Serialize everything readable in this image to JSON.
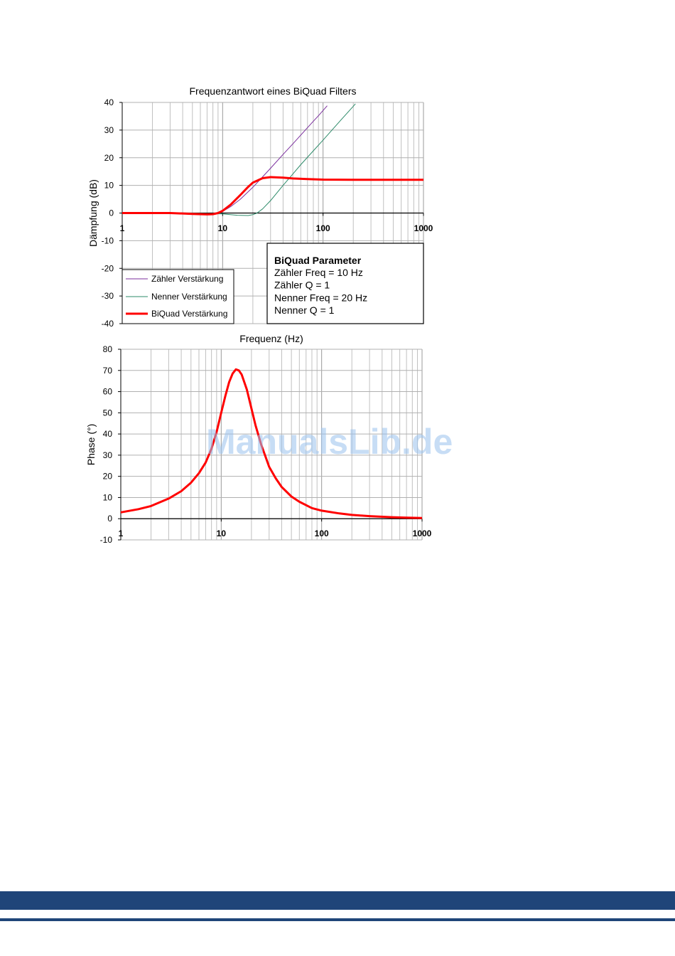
{
  "watermark": "ManualsLib.de",
  "chart_data": [
    {
      "type": "line",
      "title": "Frequenzantwort eines BiQuad Filters",
      "xlabel": "",
      "ylabel": "Dämpfung (dB)",
      "xscale": "log",
      "xlim": [
        1,
        1000
      ],
      "ylim": [
        -40,
        40
      ],
      "yticks": [
        40,
        30,
        20,
        10,
        0,
        -10,
        -20,
        -30,
        -40
      ],
      "xticks": [
        1,
        10,
        100,
        1000
      ],
      "xtick_labels": [
        "1",
        "10",
        "100",
        "1000"
      ],
      "grid": true,
      "legend_position": "bottom-left",
      "series": [
        {
          "name": "Zähler Verstärkung",
          "color": "#7b2f9e",
          "x": [
            1,
            2,
            3,
            5,
            7,
            8,
            9,
            10,
            12,
            15,
            20,
            25,
            30,
            40,
            50,
            60,
            70,
            80,
            90,
            100,
            110
          ],
          "y": [
            0,
            0,
            -0.1,
            -0.4,
            -0.6,
            -0.5,
            0.0,
            0.6,
            2.3,
            5.0,
            9.3,
            13.1,
            16.2,
            21.2,
            25.0,
            28.2,
            30.9,
            33.2,
            35.2,
            37.1,
            38.8
          ]
        },
        {
          "name": "Nenner Verstärkung",
          "color": "#2e8b6a",
          "x": [
            1,
            2,
            5,
            10,
            14,
            18,
            20,
            22,
            25,
            30,
            40,
            50,
            60,
            80,
            100,
            150,
            200,
            210
          ],
          "y": [
            0,
            0,
            0,
            -0.3,
            -0.8,
            -0.9,
            -0.6,
            0.0,
            1.5,
            4.5,
            10.0,
            14.1,
            17.5,
            22.5,
            26.4,
            33.6,
            38.6,
            39.5
          ]
        },
        {
          "name": "BiQuad Verstärkung",
          "color": "#ff0000",
          "x": [
            1,
            2,
            3,
            5,
            7,
            8,
            9,
            10,
            12,
            15,
            18,
            20,
            25,
            30,
            40,
            50,
            70,
            100,
            200,
            500,
            1000
          ],
          "y": [
            0,
            0,
            0,
            -0.3,
            -0.5,
            -0.4,
            0.0,
            0.8,
            3.0,
            6.5,
            9.5,
            11.0,
            12.6,
            13.0,
            12.8,
            12.5,
            12.3,
            12.1,
            12.0,
            12.0,
            12.0
          ]
        }
      ],
      "parameter_box": {
        "title": "BiQuad Parameter",
        "lines": [
          "Zähler Freq = 10 Hz",
          "Zähler Q = 1",
          "Nenner Freq = 20 Hz",
          "Nenner Q = 1"
        ]
      }
    },
    {
      "type": "line",
      "title": "Frequenz (Hz)",
      "xlabel": "",
      "ylabel": "Phase (°)",
      "xscale": "log",
      "xlim": [
        1,
        1000
      ],
      "ylim": [
        -10,
        80
      ],
      "yticks": [
        80,
        70,
        60,
        50,
        40,
        30,
        20,
        10,
        0,
        -10
      ],
      "xticks": [
        1,
        10,
        100,
        1000
      ],
      "xtick_labels": [
        "1",
        "10",
        "100",
        "1000"
      ],
      "grid": true,
      "series": [
        {
          "name": "",
          "color": "#ff0000",
          "x": [
            1,
            1.5,
            2,
            3,
            4,
            5,
            6,
            7,
            8,
            9,
            10,
            11,
            12,
            13,
            14,
            15,
            16,
            18,
            20,
            22,
            25,
            30,
            35,
            40,
            50,
            60,
            80,
            100,
            150,
            200,
            300,
            500,
            700,
            1000
          ],
          "y": [
            3,
            4.5,
            6,
            9.5,
            13,
            17,
            21.5,
            26.5,
            33,
            41,
            50,
            58,
            64.5,
            68.5,
            70.5,
            70,
            68,
            61,
            52,
            44,
            35,
            24.5,
            19,
            15,
            10.5,
            8,
            5,
            3.8,
            2.5,
            1.8,
            1.2,
            0.7,
            0.5,
            0.3
          ]
        }
      ]
    }
  ]
}
